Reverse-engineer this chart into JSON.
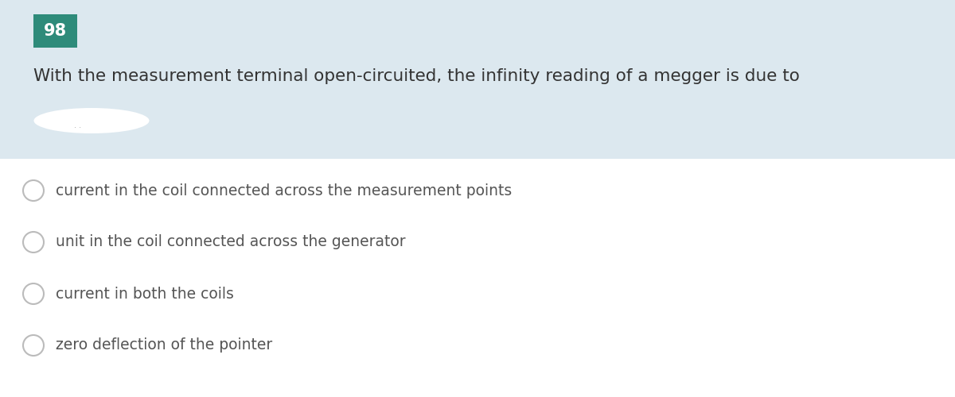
{
  "question_number": "98",
  "question_number_bg": "#2e8b7a",
  "question_number_color": "#ffffff",
  "question_text": "With the measurement terminal open-circuited, the infinity reading of a megger is due to",
  "header_bg": "#dce8ef",
  "body_bg": "#ffffff",
  "options": [
    "current in the coil connected across the measurement points",
    "unit in the coil connected across the generator",
    "current in both the coils",
    "zero deflection of the pointer"
  ],
  "option_text_color": "#555555",
  "question_text_color": "#333333",
  "circle_edge_color": "#bbbbbb",
  "circle_face_color": "#ffffff",
  "font_size_question": 15.5,
  "font_size_options": 13.5,
  "font_size_number": 15
}
